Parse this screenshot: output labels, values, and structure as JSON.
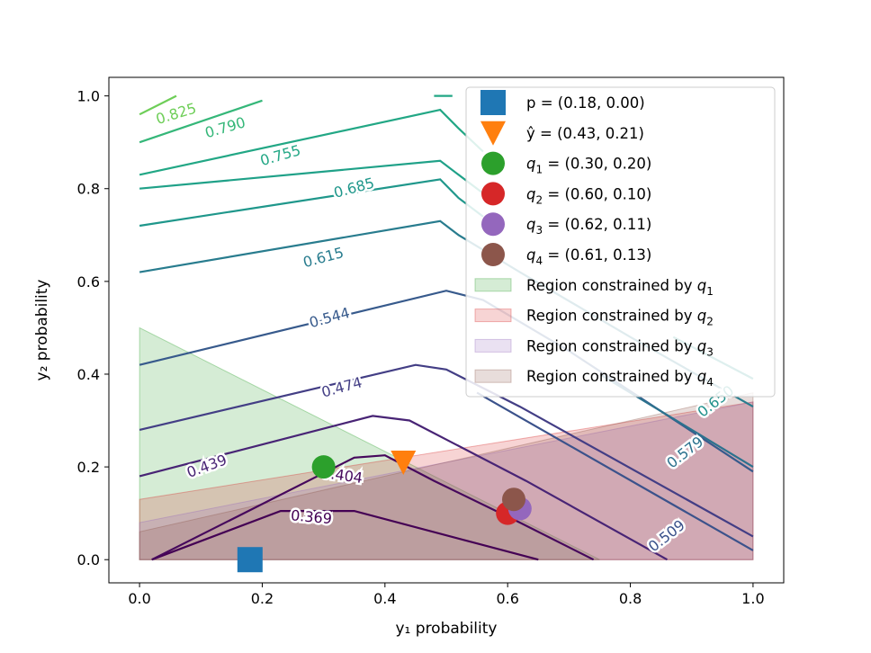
{
  "chart_data": {
    "type": "contour",
    "xlabel": "y₁ probability",
    "ylabel": "y₂ probability",
    "xlim": [
      -0.05,
      1.05
    ],
    "ylim": [
      -0.05,
      1.04
    ],
    "xticks": [
      0.0,
      0.2,
      0.4,
      0.6,
      0.8,
      1.0
    ],
    "xtick_labels": [
      "0.0",
      "0.2",
      "0.4",
      "0.6",
      "0.8",
      "1.0"
    ],
    "yticks": [
      0.0,
      0.2,
      0.4,
      0.6,
      0.8,
      1.0
    ],
    "ytick_labels": [
      "0.0",
      "0.2",
      "0.4",
      "0.6",
      "0.8",
      "1.0"
    ],
    "points": [
      {
        "name": "p",
        "x": 0.18,
        "y": 0.0,
        "marker": "square",
        "color": "#1f77b4",
        "legend": "p = (0.18, 0.00)"
      },
      {
        "name": "y_hat",
        "x": 0.43,
        "y": 0.21,
        "marker": "triangle-down",
        "color": "#ff7f0e",
        "legend": "ŷ = (0.43, 0.21)"
      },
      {
        "name": "q1",
        "x": 0.3,
        "y": 0.2,
        "marker": "circle",
        "color": "#2ca02c",
        "legend": "q1 = (0.30, 0.20)"
      },
      {
        "name": "q2",
        "x": 0.6,
        "y": 0.1,
        "marker": "circle",
        "color": "#d62728",
        "legend": "q2 = (0.60, 0.10)"
      },
      {
        "name": "q3",
        "x": 0.62,
        "y": 0.11,
        "marker": "circle",
        "color": "#9467bd",
        "legend": "q3 = (0.62, 0.11)"
      },
      {
        "name": "q4",
        "x": 0.61,
        "y": 0.13,
        "marker": "circle",
        "color": "#8c564b",
        "legend": "q4 = (0.61, 0.13)"
      }
    ],
    "regions": [
      {
        "name": "q1",
        "color": "#2ca02c",
        "opacity": 0.2,
        "legend": "Region constrained by q1",
        "polygon": [
          [
            0,
            0
          ],
          [
            0,
            0.5
          ],
          [
            0.75,
            0
          ],
          [
            0.75,
            0
          ]
        ]
      },
      {
        "name": "q2",
        "color": "#d62728",
        "opacity": 0.2,
        "legend": "Region constrained by q2",
        "polygon": [
          [
            0,
            0
          ],
          [
            0,
            0.13
          ],
          [
            1,
            0.34
          ],
          [
            1,
            0
          ]
        ]
      },
      {
        "name": "q3",
        "color": "#9467bd",
        "opacity": 0.2,
        "legend": "Region constrained by q3",
        "polygon": [
          [
            0,
            0
          ],
          [
            0,
            0.08
          ],
          [
            1,
            0.34
          ],
          [
            1,
            0
          ]
        ]
      },
      {
        "name": "q4",
        "color": "#8c564b",
        "opacity": 0.2,
        "legend": "Region constrained by q4",
        "polygon": [
          [
            0,
            0
          ],
          [
            0,
            0.06
          ],
          [
            1,
            0.36
          ],
          [
            1,
            0
          ]
        ]
      }
    ],
    "contours": [
      {
        "level": "0.369",
        "color": "#440154",
        "label": "0.369",
        "label_at": [
          0.28,
          0.09
        ],
        "label_angle": -5,
        "path": [
          [
            0.02,
            0.0
          ],
          [
            0.23,
            0.105
          ],
          [
            0.35,
            0.105
          ],
          [
            0.55,
            0.035
          ],
          [
            0.65,
            0.0
          ]
        ]
      },
      {
        "level": "0.404",
        "color": "#46085c",
        "label": "0.404",
        "label_at": [
          0.33,
          0.18
        ],
        "label_angle": -8,
        "path": [
          [
            0.02,
            0.0
          ],
          [
            0.35,
            0.22
          ],
          [
            0.4,
            0.225
          ],
          [
            0.48,
            0.17
          ],
          [
            0.62,
            0.08
          ],
          [
            0.74,
            0.0
          ]
        ]
      },
      {
        "level": "0.439",
        "color": "#482475",
        "label": "0.439",
        "label_at": [
          0.11,
          0.2
        ],
        "label_angle": 20,
        "path": [
          [
            0.0,
            0.18
          ],
          [
            0.38,
            0.31
          ],
          [
            0.44,
            0.3
          ],
          [
            0.63,
            0.17
          ],
          [
            0.86,
            0.0
          ]
        ]
      },
      {
        "level": "0.474",
        "color": "#433e85",
        "label": "0.474",
        "label_at": [
          0.33,
          0.37
        ],
        "label_angle": 15,
        "path": [
          [
            0.0,
            0.28
          ],
          [
            0.45,
            0.42
          ],
          [
            0.5,
            0.41
          ],
          [
            0.62,
            0.33
          ],
          [
            1.0,
            0.05
          ]
        ]
      },
      {
        "level": "0.509",
        "color": "#3b528b",
        "label": "0.509",
        "label_at": [
          0.86,
          0.05
        ],
        "label_angle": 38,
        "path": [
          [
            0.55,
            0.36
          ],
          [
            1.0,
            0.02
          ]
        ]
      },
      {
        "level": "0.544",
        "color": "#375a8c",
        "label": "0.544",
        "label_at": [
          0.31,
          0.52
        ],
        "label_angle": 15,
        "path": [
          [
            0.0,
            0.42
          ],
          [
            0.5,
            0.58
          ],
          [
            0.56,
            0.56
          ],
          [
            0.7,
            0.45
          ],
          [
            1.0,
            0.19
          ]
        ]
      },
      {
        "level": "0.579",
        "color": "#2c728e",
        "label": "0.579",
        "label_at": [
          0.89,
          0.23
        ],
        "label_angle": 38,
        "path": [
          [
            0.75,
            0.4
          ],
          [
            1.0,
            0.2
          ]
        ]
      },
      {
        "level": "0.615",
        "color": "#287c8e",
        "label": "0.615",
        "label_at": [
          0.3,
          0.65
        ],
        "label_angle": 15,
        "path": [
          [
            0.0,
            0.62
          ],
          [
            0.49,
            0.73
          ],
          [
            0.52,
            0.7
          ],
          [
            0.62,
            0.62
          ],
          [
            0.8,
            0.48
          ],
          [
            1.0,
            0.33
          ]
        ]
      },
      {
        "level": "0.650",
        "color": "#21918c",
        "label": "0.650",
        "label_at": [
          0.94,
          0.34
        ],
        "label_angle": 38,
        "path": [
          [
            0.87,
            0.48
          ],
          [
            1.0,
            0.39
          ]
        ]
      },
      {
        "level": "0.685",
        "color": "#1f978b",
        "label": "0.685",
        "label_at": [
          0.35,
          0.8
        ],
        "label_angle": 15,
        "path": [
          [
            0.0,
            0.72
          ],
          [
            0.49,
            0.82
          ],
          [
            0.52,
            0.78
          ],
          [
            0.56,
            0.74
          ]
        ]
      },
      {
        "level": "0.720",
        "color": "#1fa188",
        "label": "",
        "label_at": null,
        "label_angle": 0,
        "path": [
          [
            0.0,
            0.8
          ],
          [
            0.49,
            0.86
          ],
          [
            0.52,
            0.83
          ],
          [
            0.56,
            0.79
          ]
        ]
      },
      {
        "level": "0.755",
        "color": "#22a785",
        "label": "0.755",
        "label_at": [
          0.23,
          0.87
        ],
        "label_angle": 16,
        "path": [
          [
            0.0,
            0.83
          ],
          [
            0.49,
            0.97
          ],
          [
            0.52,
            0.93
          ],
          [
            0.56,
            0.88
          ]
        ]
      },
      {
        "level": "0.790",
        "color": "#35b779",
        "label": "0.790",
        "label_at": [
          0.14,
          0.93
        ],
        "label_angle": 16,
        "path": [
          [
            0.0,
            0.9
          ],
          [
            0.2,
            0.99
          ]
        ]
      },
      {
        "level": "0.825",
        "color": "#6ece58",
        "label": "0.825",
        "label_at": [
          0.06,
          0.96
        ],
        "label_angle": 17,
        "path": [
          [
            0.0,
            0.96
          ],
          [
            0.06,
            1.0
          ]
        ]
      },
      {
        "level": "top",
        "color": "#22a785",
        "label": "",
        "label_at": null,
        "label_angle": 0,
        "path": [
          [
            0.48,
            1.0
          ],
          [
            0.51,
            1.0
          ]
        ]
      }
    ],
    "legend": {
      "placement": "top-right",
      "entries": [
        {
          "kind": "square",
          "color": "#1f77b4",
          "main": "p = (0.18, 0.00)",
          "sub": ""
        },
        {
          "kind": "triangle-down",
          "color": "#ff7f0e",
          "main": "ŷ = (0.43, 0.21)",
          "sub": ""
        },
        {
          "kind": "circle",
          "color": "#2ca02c",
          "main": "q",
          "sub": "1",
          "rest": " = (0.30, 0.20)"
        },
        {
          "kind": "circle",
          "color": "#d62728",
          "main": "q",
          "sub": "2",
          "rest": " = (0.60, 0.10)"
        },
        {
          "kind": "circle",
          "color": "#9467bd",
          "main": "q",
          "sub": "3",
          "rest": " = (0.62, 0.11)"
        },
        {
          "kind": "circle",
          "color": "#8c564b",
          "main": "q",
          "sub": "4",
          "rest": " = (0.61, 0.13)"
        },
        {
          "kind": "patch",
          "color": "#2ca02c",
          "main": "Region constrained by q",
          "sub": "1",
          "rest": ""
        },
        {
          "kind": "patch",
          "color": "#d62728",
          "main": "Region constrained by q",
          "sub": "2",
          "rest": ""
        },
        {
          "kind": "patch",
          "color": "#9467bd",
          "main": "Region constrained by q",
          "sub": "3",
          "rest": ""
        },
        {
          "kind": "patch",
          "color": "#8c564b",
          "main": "Region constrained by q",
          "sub": "4",
          "rest": ""
        }
      ]
    }
  }
}
